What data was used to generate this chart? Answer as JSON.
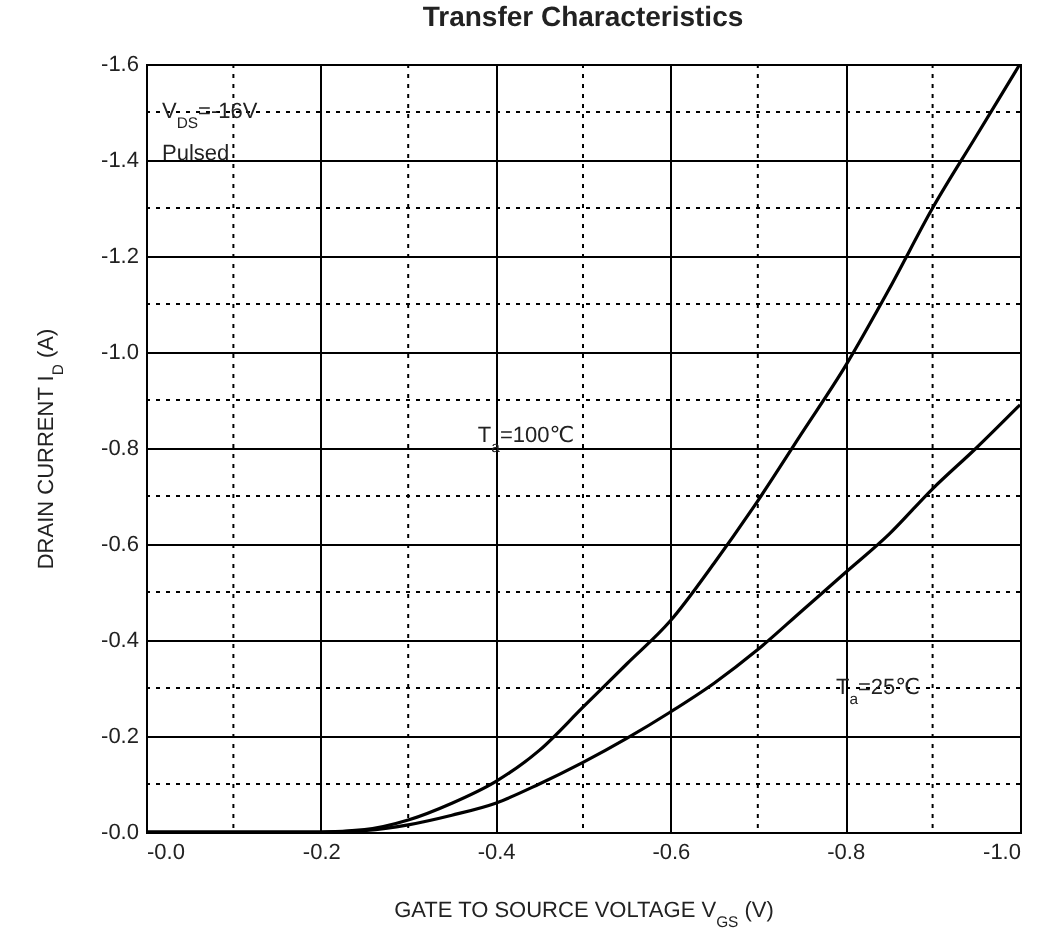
{
  "chart_data": {
    "type": "line",
    "title": "Transfer Characteristics",
    "xlabel": "GATE TO SOURCE VOLTAGE   V$_{GS}$   (V)",
    "ylabel": "DRAIN CURRENT   I$_{D}$   (A)",
    "x": [
      0,
      -0.1,
      -0.2,
      -0.25,
      -0.3,
      -0.35,
      -0.4,
      -0.45,
      -0.5,
      -0.55,
      -0.6,
      -0.65,
      -0.7,
      -0.75,
      -0.8,
      -0.85,
      -0.9,
      -0.95,
      -1.0
    ],
    "series": [
      {
        "color": "#000000",
        "values": [
          0,
          0,
          0,
          -0.005,
          -0.025,
          -0.06,
          -0.105,
          -0.17,
          -0.26,
          -0.35,
          -0.44,
          -0.56,
          -0.69,
          -0.83,
          -0.97,
          -1.13,
          -1.3,
          -1.45,
          -1.6
        ]
      },
      {
        "color": "#000000",
        "values": [
          0,
          0,
          0,
          -0.003,
          -0.015,
          -0.035,
          -0.06,
          -0.1,
          -0.145,
          -0.195,
          -0.25,
          -0.31,
          -0.38,
          -0.46,
          -0.54,
          -0.62,
          -0.715,
          -0.8,
          -0.89
        ]
      }
    ],
    "annotations": [
      "V$_{DS}$=-16V",
      "Pulsed",
      "T$_{a}$=100℃",
      "T$_{a}$=25℃"
    ],
    "xlim": [
      0,
      -1.0
    ],
    "ylim": [
      0,
      -1.6
    ],
    "xticks": [
      {
        "value": 0,
        "label": "-0.0"
      },
      {
        "value": -0.1,
        "label": null
      },
      -0.2,
      {
        "value": -0.3,
        "label": null
      },
      -0.4,
      {
        "value": -0.5,
        "label": null
      },
      -0.6,
      {
        "value": -0.7,
        "label": null
      },
      -0.8,
      {
        "value": -0.9,
        "label": null
      },
      {
        "value": -1.0,
        "label": "-1.0"
      }
    ],
    "yticks": [
      {
        "value": 0,
        "label": "-0.0"
      },
      {
        "value": -0.1,
        "label": null
      },
      -0.2,
      {
        "value": -0.3,
        "label": null
      },
      -0.4,
      {
        "value": -0.5,
        "label": null
      },
      -0.6,
      {
        "value": -0.7,
        "label": null
      },
      -0.8,
      {
        "value": -0.9,
        "label": null
      },
      {
        "value": -1.0,
        "label": "-1.0"
      },
      {
        "value": -1.1,
        "label": null
      },
      -1.2,
      {
        "value": -1.3,
        "label": null
      },
      -1.4,
      {
        "value": -1.5,
        "label": null
      },
      -1.6
    ],
    "grid": true,
    "line_style": "solid"
  }
}
